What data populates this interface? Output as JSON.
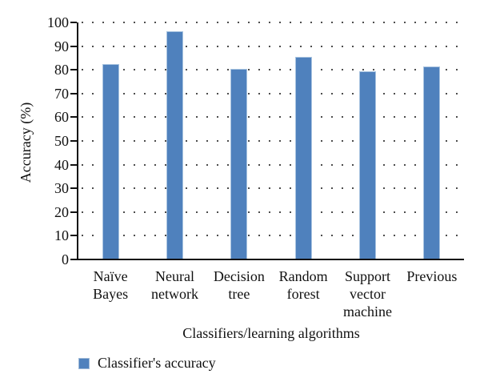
{
  "chart_data": {
    "type": "bar",
    "categories": [
      "Naïve Bayes",
      "Neural network",
      "Decision tree",
      "Random forest",
      "Support vector machine",
      "Previous"
    ],
    "category_label_lines": [
      [
        "Naïve",
        "Bayes"
      ],
      [
        "Neural",
        "network"
      ],
      [
        "Decision",
        "tree"
      ],
      [
        "Random",
        "forest"
      ],
      [
        "Support",
        "vector",
        "machine"
      ],
      [
        "Previous"
      ]
    ],
    "values": [
      82,
      96,
      80,
      85,
      79,
      81
    ],
    "series_name": "Classifier's accuracy",
    "title": "",
    "xlabel": "Classifiers/learning algorithms",
    "ylabel": "Accuracy (%)",
    "ylim": [
      0,
      100
    ],
    "ytick_step": 10,
    "ytick_labels": [
      "0",
      "10",
      "20",
      "30",
      "40",
      "50",
      "60",
      "70",
      "80",
      "90",
      "100"
    ],
    "grid": "dotted horizontal gridlines at each y tick",
    "legend_position": "bottom-left",
    "colors": {
      "bar_fill": "#4f81bd",
      "bar_border": "#a9c4e0",
      "axis": "#111111",
      "grid_dot": "#4d4d4d",
      "text": "#111111",
      "background": "#ffffff"
    }
  },
  "legend": {
    "label": "Classifier's accuracy"
  }
}
